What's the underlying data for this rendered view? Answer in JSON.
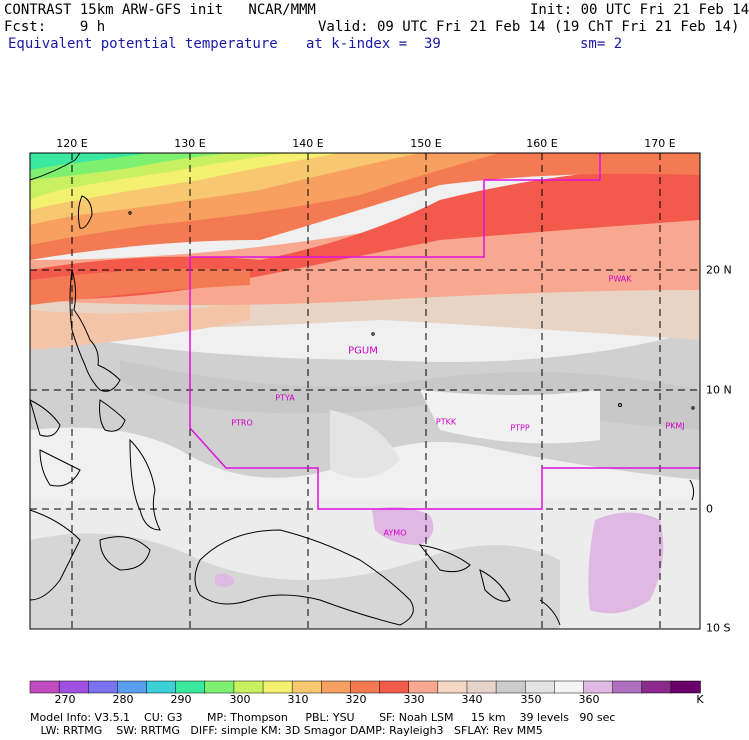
{
  "header": {
    "line1_left": "CONTRAST 15km ARW-GFS init   NCAR/MMM",
    "line1_right": "Init: 00 UTC Fri 21 Feb 14",
    "line2_left": "Fcst:    9 h",
    "line2_right": "Valid: 09 UTC Fri 21 Feb 14 (19 ChT Fri 21 Feb 14)",
    "line3_left": "Equivalent potential temperature",
    "line3_mid": "at k-index =  39",
    "line3_right": "sm= 2"
  },
  "map": {
    "lon_labels": [
      "120 E",
      "130 E",
      "140 E",
      "150 E",
      "160 E",
      "170 E"
    ],
    "lat_labels": [
      "20 N",
      "10 N",
      "0",
      "10 S"
    ],
    "stations": [
      "PWAK",
      "PGUM",
      "PTYA",
      "PTRO",
      "PTKK",
      "PTPP",
      "PKMJ",
      "AYMO"
    ]
  },
  "colorbar": {
    "colors": [
      "#c04cc0",
      "#a050e0",
      "#7a72ee",
      "#5a9ef0",
      "#3cd0d8",
      "#3ae8a0",
      "#7ef070",
      "#c8f060",
      "#f4f070",
      "#f8c870",
      "#f8a060",
      "#f47a54",
      "#f45a4c",
      "#f8a890",
      "#f4d8c4",
      "#e6d4cc",
      "#cccccc",
      "#e4e4e4",
      "#f4f4f4",
      "#e0b8e4",
      "#b070c0",
      "#8c2a8c",
      "#6a006a"
    ],
    "ticks": [
      "270",
      "280",
      "290",
      "300",
      "310",
      "320",
      "330",
      "340",
      "350",
      "360",
      "K"
    ]
  },
  "footer": {
    "line1": "Model Info: V3.5.1    CU: G3       MP: Thompson     PBL: YSU       SF: Noah LSM     15 km    39 levels   90 sec",
    "line2": "   LW: RRTMG    SW: RRTMG   DIFF: simple KM: 3D Smagor DAMP: Rayleigh3   SFLAY: Rev MM5"
  }
}
